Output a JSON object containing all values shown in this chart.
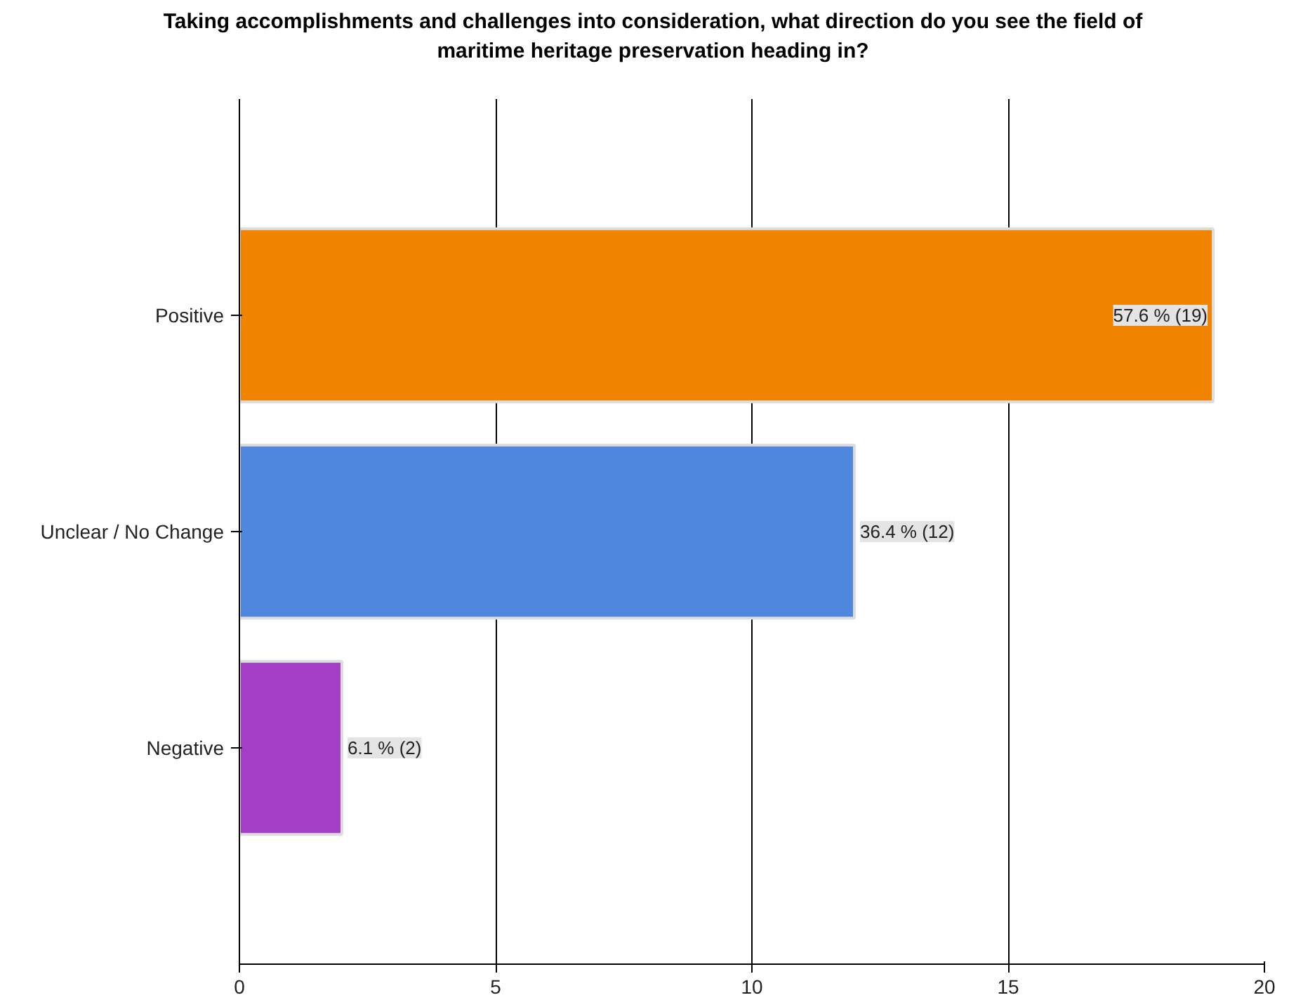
{
  "chart_data": {
    "type": "bar",
    "orientation": "horizontal",
    "title": "Taking accomplishments and challenges into consideration, what direction do you see the field of maritime heritage preservation heading in?",
    "categories": [
      "Positive",
      "Unclear / No Change",
      "Negative"
    ],
    "values": [
      19,
      12,
      2
    ],
    "colors": [
      "#f08400",
      "#4f86de",
      "#a43ec4"
    ],
    "value_labels": [
      "57.6 % (19)",
      "36.4 % (12)",
      "6.1 % (2)"
    ],
    "xlim": [
      0,
      20
    ],
    "xticks": [
      0,
      5,
      10,
      15,
      20
    ],
    "grid": "x"
  }
}
